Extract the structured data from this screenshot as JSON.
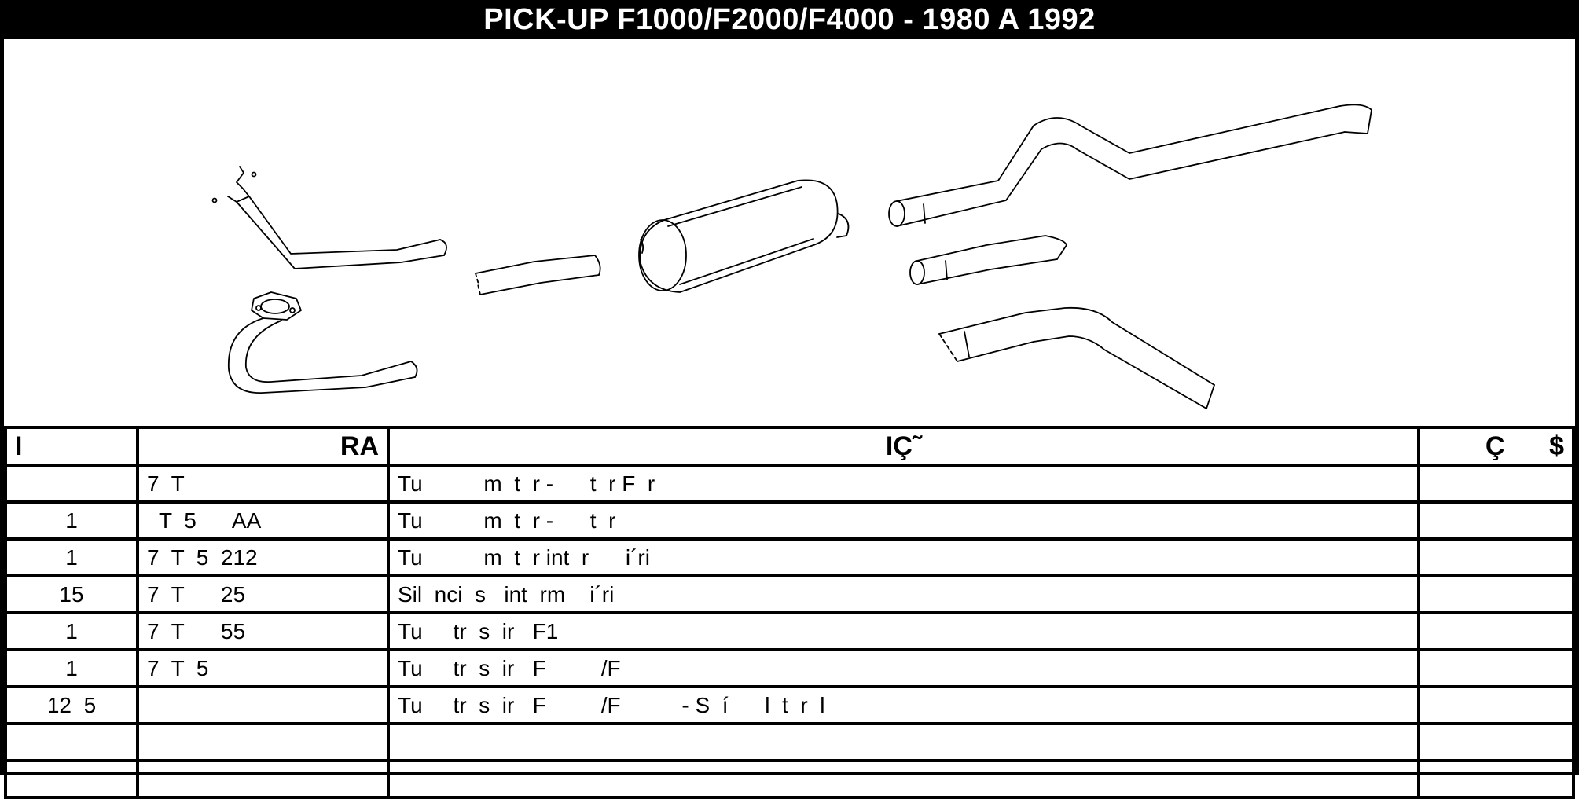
{
  "title": "PICK-UP F1000/F2000/F4000 - 1980 A 1992",
  "table": {
    "headers": {
      "qty": "I",
      "ref": "RA",
      "desc": "IÇ˜",
      "price": "Ç      $"
    },
    "rows": [
      {
        "qty": "",
        "ref": "7  T",
        "desc": "Tu          m  t  r -      t  r F  r",
        "price": ""
      },
      {
        "qty": "1",
        "ref": "  T  5      AA",
        "desc": "Tu          m  t  r -      t  r",
        "price": ""
      },
      {
        "qty": "1",
        "ref": "7  T  5  212",
        "desc": "Tu          m  t  r int  r      i´ri",
        "price": ""
      },
      {
        "qty": "15",
        "ref": "7  T      25",
        "desc": "Sil  nci  s   int  rm    i´ri",
        "price": ""
      },
      {
        "qty": "1",
        "ref": "7  T      55",
        "desc": "Tu     tr  s  ir   F1",
        "price": ""
      },
      {
        "qty": "1",
        "ref": "7  T  5",
        "desc": "Tu     tr  s  ir   F         /F",
        "price": ""
      },
      {
        "qty": "12  5",
        "ref": "",
        "desc": "Tu     tr  s  ir   F         /F          - S  í      l  t  r  l",
        "price": ""
      },
      {
        "qty": "",
        "ref": "",
        "desc": "",
        "price": ""
      },
      {
        "qty": "",
        "ref": "",
        "desc": "",
        "price": ""
      }
    ]
  }
}
